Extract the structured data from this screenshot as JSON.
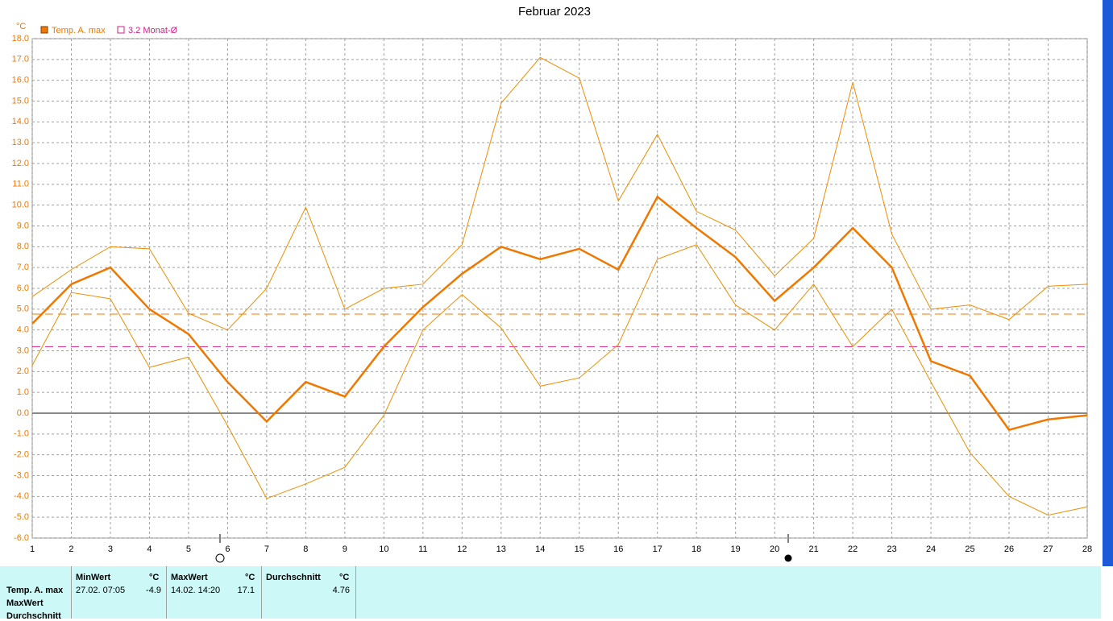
{
  "chart_data": {
    "type": "line",
    "title": "Februar 2023",
    "y_unit": "°C",
    "x": [
      1,
      2,
      3,
      4,
      5,
      6,
      7,
      8,
      9,
      10,
      11,
      12,
      13,
      14,
      15,
      16,
      17,
      18,
      19,
      20,
      21,
      22,
      23,
      24,
      25,
      26,
      27,
      28
    ],
    "xlim": [
      1,
      28
    ],
    "xticks": [
      1,
      2,
      3,
      4,
      5,
      6,
      7,
      8,
      9,
      10,
      11,
      12,
      13,
      14,
      15,
      16,
      17,
      18,
      19,
      20,
      21,
      22,
      23,
      24,
      25,
      26,
      27,
      28
    ],
    "ylim": [
      -6,
      18
    ],
    "yticks": [
      {
        "value": 18,
        "label": "18.0"
      },
      {
        "value": 17,
        "label": "17.0"
      },
      {
        "value": 16,
        "label": "16.0"
      },
      {
        "value": 15,
        "label": "15.0"
      },
      {
        "value": 14,
        "label": "14.0"
      },
      {
        "value": 13,
        "label": "13.0"
      },
      {
        "value": 12,
        "label": "12.0"
      },
      {
        "value": 11,
        "label": "11.0"
      },
      {
        "value": 10,
        "label": "10.0"
      },
      {
        "value": 9,
        "label": "9.0"
      },
      {
        "value": 8,
        "label": "8.0"
      },
      {
        "value": 7,
        "label": "7.0"
      },
      {
        "value": 6,
        "label": "6.0"
      },
      {
        "value": 5,
        "label": "5.0"
      },
      {
        "value": 4,
        "label": "4.0"
      },
      {
        "value": 3,
        "label": "3.0"
      },
      {
        "value": 2,
        "label": "2.0"
      },
      {
        "value": 1,
        "label": "1.0"
      },
      {
        "value": 0,
        "label": "0.0"
      },
      {
        "value": -1,
        "label": "-1.0"
      },
      {
        "value": -2,
        "label": "-2.0"
      },
      {
        "value": -3,
        "label": "-3.0"
      },
      {
        "value": -4,
        "label": "-4.0"
      },
      {
        "value": -5,
        "label": "-5.0"
      },
      {
        "value": -6,
        "label": "-6.0"
      }
    ],
    "grid": true,
    "series": [
      {
        "name": "Temp. A. max",
        "color": "#f07800",
        "values": [
          4.3,
          6.2,
          7.0,
          5.0,
          3.8,
          1.5,
          -0.4,
          1.5,
          0.8,
          3.2,
          5.1,
          6.7,
          8.0,
          7.4,
          7.9,
          6.9,
          10.4,
          8.9,
          7.5,
          5.4,
          7.0,
          8.9,
          7.0,
          2.5,
          1.8,
          -0.8,
          -0.3,
          -0.1
        ]
      },
      {
        "color": "#f08c00",
        "values": [
          5.6,
          6.9,
          8.0,
          7.9,
          4.8,
          4.0,
          6.0,
          9.9,
          5.0,
          6.0,
          6.2,
          8.1,
          14.9,
          17.1,
          16.1,
          10.2,
          13.4,
          9.7,
          8.8,
          6.6,
          8.4,
          15.9,
          8.6,
          5.0,
          5.2,
          4.5,
          6.1,
          6.2
        ]
      },
      {
        "color": "#f08c00",
        "values": [
          2.3,
          5.8,
          5.5,
          2.2,
          2.7,
          -0.6,
          -4.1,
          -3.4,
          -2.6,
          -0.1,
          4.0,
          5.7,
          4.1,
          1.3,
          1.7,
          3.3,
          7.4,
          8.1,
          5.2,
          4.0,
          6.2,
          3.2,
          5.0,
          1.5,
          -1.9,
          -4.0,
          -4.9,
          -4.5
        ]
      }
    ],
    "mean_line": {
      "value": 4.76,
      "color": "#f07800"
    },
    "reference_line": {
      "value": 3.2,
      "label": "3.2 Monat-Ø",
      "color": "#d0208c"
    }
  },
  "stats_table": {
    "row_labels": [
      "Temp. A. max",
      "MaxWert",
      "Durchschnitt"
    ],
    "headers": [
      "MinWert",
      "°C",
      "MaxWert",
      "°C",
      "Durchschnitt",
      "°C"
    ],
    "min_time": "27.02.  07:05",
    "max_time": "14.02.  14:20"
  }
}
